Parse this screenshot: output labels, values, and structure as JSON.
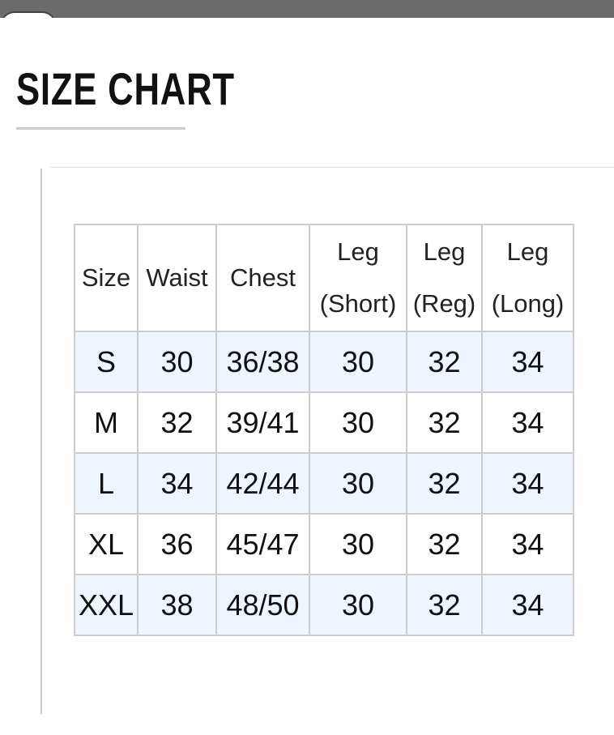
{
  "header": {
    "title": "SIZE CHART"
  },
  "table": {
    "columns": [
      "Size",
      "Waist",
      "Chest",
      "Leg (Short)",
      "Leg (Reg)",
      "Leg (Long)"
    ],
    "rows": [
      [
        "S",
        30,
        "36/38",
        30,
        32,
        34
      ],
      [
        "M",
        32,
        "39/41",
        30,
        32,
        34
      ],
      [
        "L",
        34,
        "42/44",
        30,
        32,
        34
      ],
      [
        "XL",
        36,
        "45/47",
        30,
        32,
        34
      ],
      [
        "XXL",
        38,
        "48/50",
        30,
        32,
        34
      ]
    ]
  }
}
